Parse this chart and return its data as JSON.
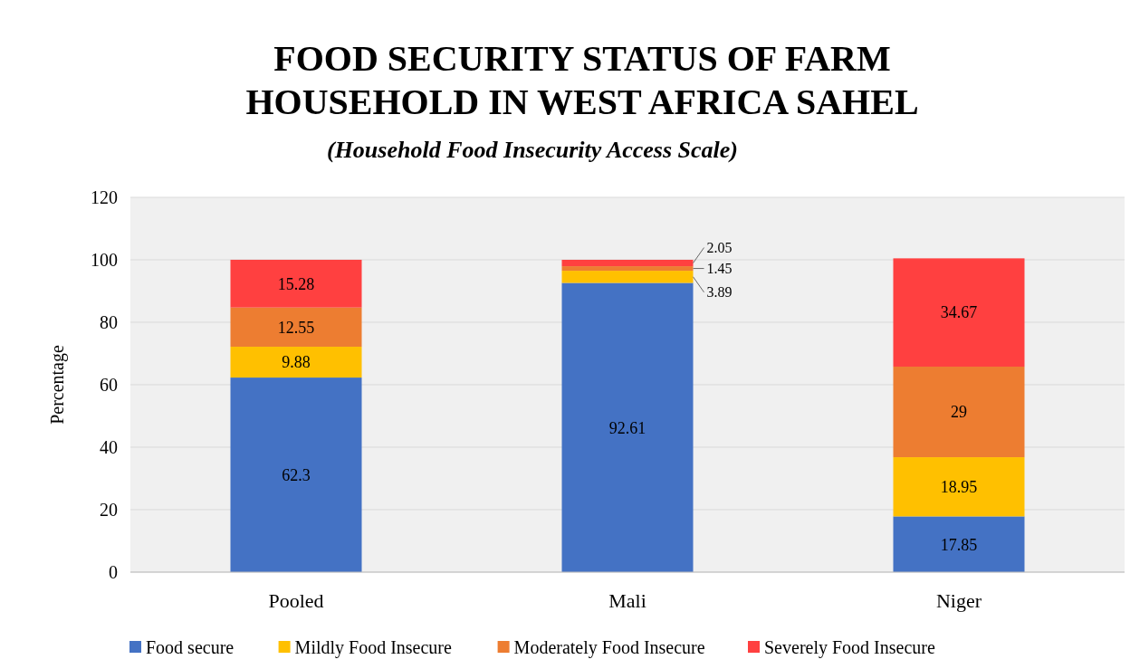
{
  "chart_data": {
    "type": "bar",
    "title": "FOOD SECURITY STATUS OF FARM HOUSEHOLD IN WEST AFRICA SAHEL",
    "subtitle": "(Household Food Insecurity Access Scale)",
    "ylabel": "Percentage",
    "categories": [
      "Pooled",
      "Mali",
      "Niger"
    ],
    "stacked": true,
    "data_labels": true,
    "legend": "bottom",
    "grid": "y",
    "ylim": [
      0,
      120
    ],
    "yticks": [
      0,
      20,
      40,
      60,
      80,
      100,
      120
    ],
    "series": [
      {
        "name": "Food secure",
        "color": "#4472c4",
        "values": [
          62.3,
          92.61,
          17.85
        ]
      },
      {
        "name": "Mildly Food Insecure",
        "color": "#ffc000",
        "values": [
          9.88,
          3.89,
          18.95
        ]
      },
      {
        "name": "Moderately Food Insecure",
        "color": "#ed7d31",
        "values": [
          12.55,
          1.45,
          29
        ]
      },
      {
        "name": "Severely Food Insecure",
        "color": "#ff4040",
        "values": [
          15.28,
          2.05,
          34.67
        ]
      }
    ]
  }
}
